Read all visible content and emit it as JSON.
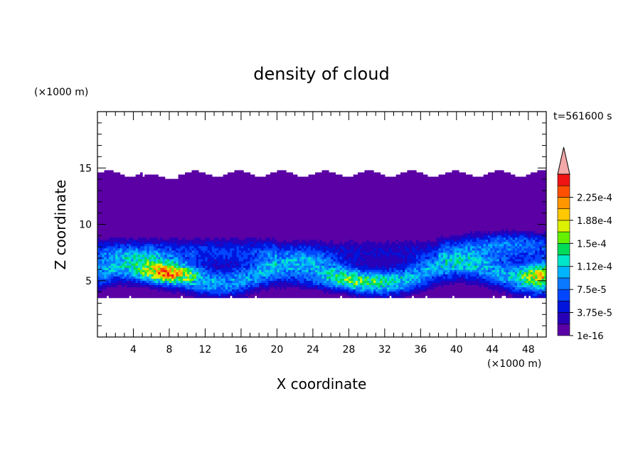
{
  "chart_data": {
    "type": "heatmap",
    "title": "density of cloud",
    "xlabel": "X coordinate",
    "ylabel": "Z coordinate",
    "x_unit": "(×1000 m)",
    "y_unit": "(×1000 m)",
    "time_label": "t=561600 s",
    "xlim": [
      0,
      50
    ],
    "ylim": [
      0,
      20
    ],
    "xticks": [
      4,
      8,
      12,
      16,
      20,
      24,
      28,
      32,
      36,
      40,
      44,
      48
    ],
    "yticks": [
      5,
      10,
      15
    ],
    "grid": false,
    "legend": "colorbar-right",
    "colorbar": {
      "levels": [
        1e-16,
        1.875e-05,
        3.75e-05,
        5.625e-05,
        7.5e-05,
        9.375e-05,
        0.0001125,
        0.00013125,
        0.00015,
        0.00016875,
        0.0001875,
        0.00020625,
        0.000225,
        0.00024375
      ],
      "tick_labels": [
        "1e-16",
        "3.75e-5",
        "7.5e-5",
        "1.12e-4",
        "1.5e-4",
        "1.88e-4",
        "2.25e-4"
      ],
      "colors": [
        "#5a00a5",
        "#2800b8",
        "#0014dc",
        "#0046ff",
        "#0a78ff",
        "#00b4ff",
        "#00e6c8",
        "#00dc5a",
        "#64f000",
        "#dcf000",
        "#ffc800",
        "#ff9600",
        "#ff5000",
        "#f01414"
      ],
      "extend_color": "#f4a8a8"
    },
    "cloud_extent": {
      "x_range": [
        0,
        50
      ],
      "z_bottom": 3.5,
      "z_top": 14.6,
      "description_levels": "dense band between z=4 and z=9"
    },
    "local_maxima": [
      {
        "x": 7.5,
        "z": 5.6,
        "value": 0.00016
      },
      {
        "x": 49,
        "z": 5.7,
        "value": 0.00016
      },
      {
        "x": 28,
        "z": 5.0,
        "value": 0.0001
      }
    ]
  }
}
